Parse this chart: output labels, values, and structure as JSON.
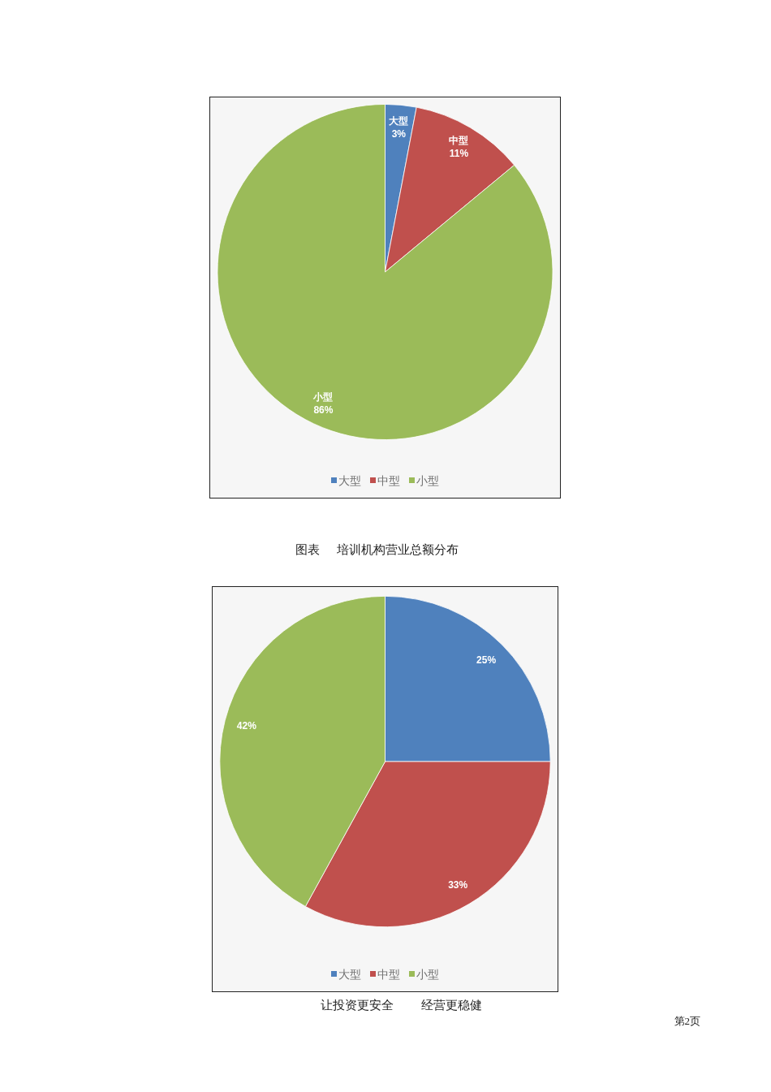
{
  "chart_data": [
    {
      "type": "pie",
      "categories": [
        "大型",
        "中型",
        "小型"
      ],
      "values": [
        3,
        11,
        86
      ],
      "colors": [
        "#4f81bd",
        "#c0504d",
        "#9bbb59"
      ],
      "value_labels": [
        "大型\n3%",
        "中型\n11%",
        "小型\n86%"
      ],
      "legend": "bottom"
    },
    {
      "type": "pie",
      "title": "图表 培训机构营业总额分布",
      "categories": [
        "大型",
        "中型",
        "小型"
      ],
      "values": [
        25,
        33,
        42
      ],
      "colors": [
        "#4f81bd",
        "#c0504d",
        "#9bbb59"
      ],
      "value_labels": [
        "25%",
        "33%",
        "42%"
      ],
      "legend": "bottom",
      "annotations": [
        "让投资更安全 经营更稳健",
        "第2页"
      ]
    }
  ]
}
